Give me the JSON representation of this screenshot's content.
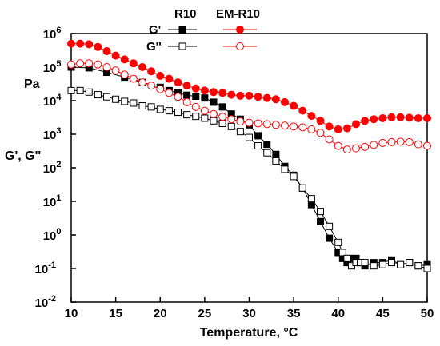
{
  "chart_data": {
    "type": "scatter",
    "xlabel": "Temperature, °C",
    "ylabel": "G', G''",
    "yunit": "Pa",
    "xlim": [
      10,
      50
    ],
    "ylim": [
      0.01,
      1000000
    ],
    "yscale": "log",
    "xticks": [
      10,
      15,
      20,
      25,
      30,
      35,
      40,
      45,
      50
    ],
    "ytick_exponents": [
      -2,
      -1,
      0,
      1,
      2,
      3,
      4,
      5,
      6
    ],
    "grid": false,
    "legend": {
      "columns": [
        "R10",
        "EM-R10"
      ],
      "rows": [
        "G'",
        "G''"
      ]
    },
    "series": [
      {
        "name": "R10 G'",
        "color": "#000000",
        "marker": "square-filled",
        "x": [
          10,
          12,
          14,
          16,
          18,
          20,
          21,
          22,
          23,
          24,
          25,
          26,
          27,
          28,
          29,
          30,
          31,
          32,
          33,
          34,
          35,
          36,
          37,
          38,
          39,
          40,
          40.5,
          41,
          41.5,
          42,
          42.5,
          43,
          44,
          45,
          46,
          47,
          48,
          49,
          50
        ],
        "y": [
          100000,
          95000,
          70000,
          50000,
          35000,
          25000,
          20000,
          17000,
          14500,
          13500,
          12000,
          9000,
          6500,
          4000,
          2800,
          1900,
          900,
          500,
          250,
          110,
          60,
          25,
          8,
          2.5,
          0.8,
          0.3,
          0.2,
          0.15,
          0.2,
          0.2,
          0.15,
          0.12,
          0.15,
          0.15,
          0.18,
          0.13,
          0.15,
          0.12,
          0.13
        ]
      },
      {
        "name": "R10 G''",
        "color": "#000000",
        "marker": "square-open",
        "x": [
          10,
          11,
          12,
          13,
          14,
          15,
          16,
          17,
          18,
          19,
          20,
          21,
          22,
          23,
          24,
          25,
          26,
          27,
          28,
          29,
          30,
          31,
          32,
          33,
          34,
          35,
          36,
          37,
          38,
          39,
          40,
          40.5,
          41,
          41.5,
          42,
          42.5,
          43,
          44,
          45,
          46,
          47,
          48,
          49,
          50
        ],
        "y": [
          20000,
          20000,
          18000,
          15000,
          13000,
          11000,
          9500,
          8500,
          7000,
          6500,
          5500,
          5000,
          4500,
          3800,
          3400,
          3000,
          2500,
          2100,
          1700,
          1200,
          800,
          450,
          280,
          160,
          90,
          55,
          25,
          12,
          5,
          1.8,
          0.6,
          0.3,
          0.2,
          0.12,
          0.15,
          0.15,
          0.15,
          0.12,
          0.13,
          0.15,
          0.13,
          0.15,
          0.12,
          0.1
        ]
      },
      {
        "name": "EM-R10 G'",
        "color": "#ff0000",
        "marker": "circle-filled",
        "x": [
          10,
          11,
          12,
          13,
          14,
          15,
          16,
          17,
          18,
          19,
          20,
          21,
          22,
          23,
          24,
          25,
          26,
          27,
          28,
          29,
          30,
          31,
          32,
          33,
          34,
          35,
          36,
          37,
          38,
          39,
          40,
          41,
          42,
          43,
          44,
          45,
          46,
          47,
          48,
          49,
          50
        ],
        "y": [
          500000,
          500000,
          480000,
          400000,
          300000,
          220000,
          170000,
          130000,
          100000,
          75000,
          55000,
          45000,
          35000,
          28000,
          23000,
          20000,
          18000,
          17000,
          15000,
          14000,
          14000,
          13000,
          12000,
          11000,
          9000,
          7000,
          5000,
          3500,
          2500,
          1700,
          1400,
          1500,
          2000,
          2500,
          2800,
          3000,
          3200,
          3200,
          3100,
          3000,
          3000
        ]
      },
      {
        "name": "EM-R10 G''",
        "color": "#ff0000",
        "marker": "circle-open",
        "x": [
          10,
          11,
          12,
          13,
          14,
          15,
          16,
          17,
          18,
          19,
          20,
          21,
          22,
          23,
          24,
          25,
          26,
          27,
          28,
          29,
          30,
          31,
          32,
          33,
          34,
          35,
          36,
          37,
          38,
          39,
          40,
          41,
          42,
          43,
          44,
          45,
          46,
          47,
          48,
          49,
          50
        ],
        "y": [
          120000,
          130000,
          130000,
          120000,
          100000,
          80000,
          60000,
          45000,
          35000,
          28000,
          22000,
          17000,
          13000,
          9000,
          6500,
          5000,
          4000,
          3300,
          2800,
          2400,
          2200,
          2100,
          2000,
          1900,
          1800,
          1700,
          1600,
          1400,
          1100,
          700,
          450,
          350,
          380,
          420,
          480,
          550,
          580,
          600,
          580,
          500,
          450
        ]
      }
    ]
  }
}
